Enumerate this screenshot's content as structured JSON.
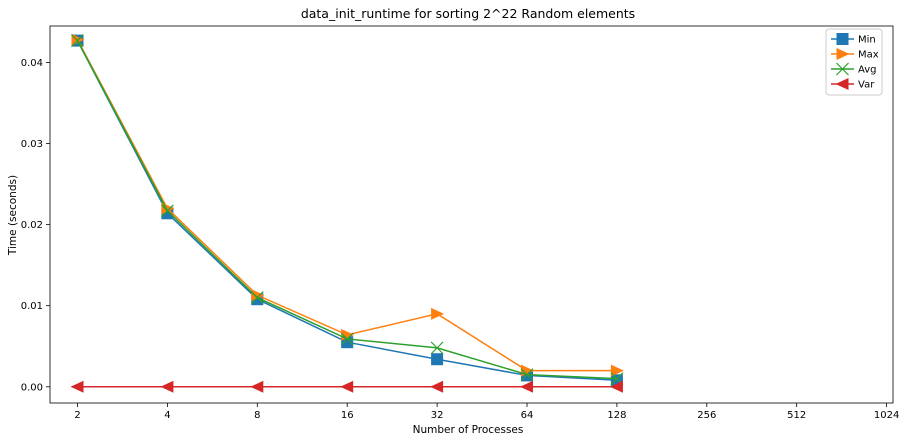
{
  "chart_data": {
    "type": "line",
    "title": "data_init_runtime for sorting 2^22 Random elements",
    "xlabel": "Number of Processes",
    "ylabel": "Time (seconds)",
    "x_scale": "log2",
    "x_ticks": [
      "2",
      "4",
      "8",
      "16",
      "32",
      "64",
      "128",
      "256",
      "512",
      "1024"
    ],
    "x": [
      2,
      4,
      8,
      16,
      32,
      64,
      128
    ],
    "y_ticks": [
      "0.00",
      "0.01",
      "0.02",
      "0.03",
      "0.04"
    ],
    "ylim": [
      -0.002,
      0.0445
    ],
    "grid": false,
    "legend_position": "top-right",
    "series": [
      {
        "name": "Min",
        "color": "#1f77b4",
        "marker": "square",
        "values": [
          0.0427,
          0.0214,
          0.0108,
          0.0055,
          0.0034,
          0.0014,
          0.0008
        ]
      },
      {
        "name": "Max",
        "color": "#ff7f0e",
        "marker": "triangle-right",
        "values": [
          0.0428,
          0.022,
          0.0113,
          0.0064,
          0.009,
          0.002,
          0.002
        ]
      },
      {
        "name": "Avg",
        "color": "#2ca02c",
        "marker": "x",
        "values": [
          0.0427,
          0.0217,
          0.011,
          0.0059,
          0.0048,
          0.0015,
          0.001
        ]
      },
      {
        "name": "Var",
        "color": "#d62728",
        "marker": "triangle-left",
        "values": [
          0.0,
          0.0,
          0.0,
          0.0,
          0.0,
          0.0,
          0.0
        ]
      }
    ]
  }
}
